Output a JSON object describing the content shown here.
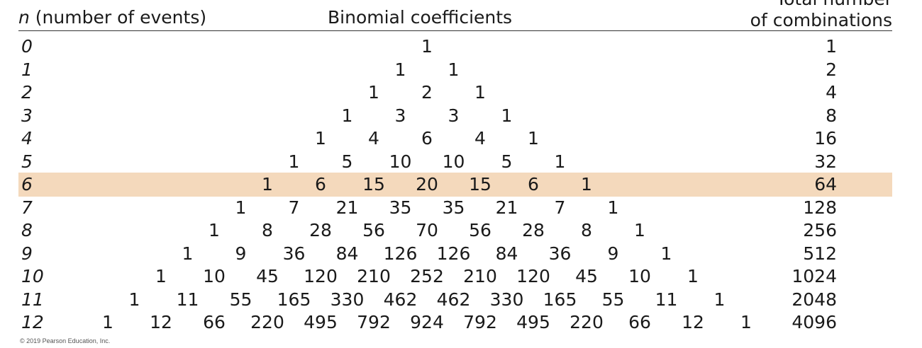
{
  "header": {
    "n_italic": "n",
    "n_rest": " (number of events)",
    "coefficients": "Binomial coefficients",
    "total_line1": "Total number",
    "total_line2": "of combinations"
  },
  "highlight_row": 6,
  "highlight_color": "#f4d9bc",
  "rows": [
    {
      "n": "0",
      "coefficients": [
        "1"
      ],
      "total": "1"
    },
    {
      "n": "1",
      "coefficients": [
        "1",
        "1"
      ],
      "total": "2"
    },
    {
      "n": "2",
      "coefficients": [
        "1",
        "2",
        "1"
      ],
      "total": "4"
    },
    {
      "n": "3",
      "coefficients": [
        "1",
        "3",
        "3",
        "1"
      ],
      "total": "8"
    },
    {
      "n": "4",
      "coefficients": [
        "1",
        "4",
        "6",
        "4",
        "1"
      ],
      "total": "16"
    },
    {
      "n": "5",
      "coefficients": [
        "1",
        "5",
        "10",
        "10",
        "5",
        "1"
      ],
      "total": "32"
    },
    {
      "n": "6",
      "coefficients": [
        "1",
        "6",
        "15",
        "20",
        "15",
        "6",
        "1"
      ],
      "total": "64"
    },
    {
      "n": "7",
      "coefficients": [
        "1",
        "7",
        "21",
        "35",
        "35",
        "21",
        "7",
        "1"
      ],
      "total": "128"
    },
    {
      "n": "8",
      "coefficients": [
        "1",
        "8",
        "28",
        "56",
        "70",
        "56",
        "28",
        "8",
        "1"
      ],
      "total": "256"
    },
    {
      "n": "9",
      "coefficients": [
        "1",
        "9",
        "36",
        "84",
        "126",
        "126",
        "84",
        "36",
        "9",
        "1"
      ],
      "total": "512"
    },
    {
      "n": "10",
      "coefficients": [
        "1",
        "10",
        "45",
        "120",
        "210",
        "252",
        "210",
        "120",
        "45",
        "10",
        "1"
      ],
      "total": "1024"
    },
    {
      "n": "11",
      "coefficients": [
        "1",
        "11",
        "55",
        "165",
        "330",
        "462",
        "462",
        "330",
        "165",
        "55",
        "11",
        "1"
      ],
      "total": "2048"
    },
    {
      "n": "12",
      "coefficients": [
        "1",
        "12",
        "66",
        "220",
        "495",
        "792",
        "924",
        "792",
        "495",
        "220",
        "66",
        "12",
        "1"
      ],
      "total": "4096"
    }
  ],
  "copyright": "© 2019 Pearson Education, Inc."
}
